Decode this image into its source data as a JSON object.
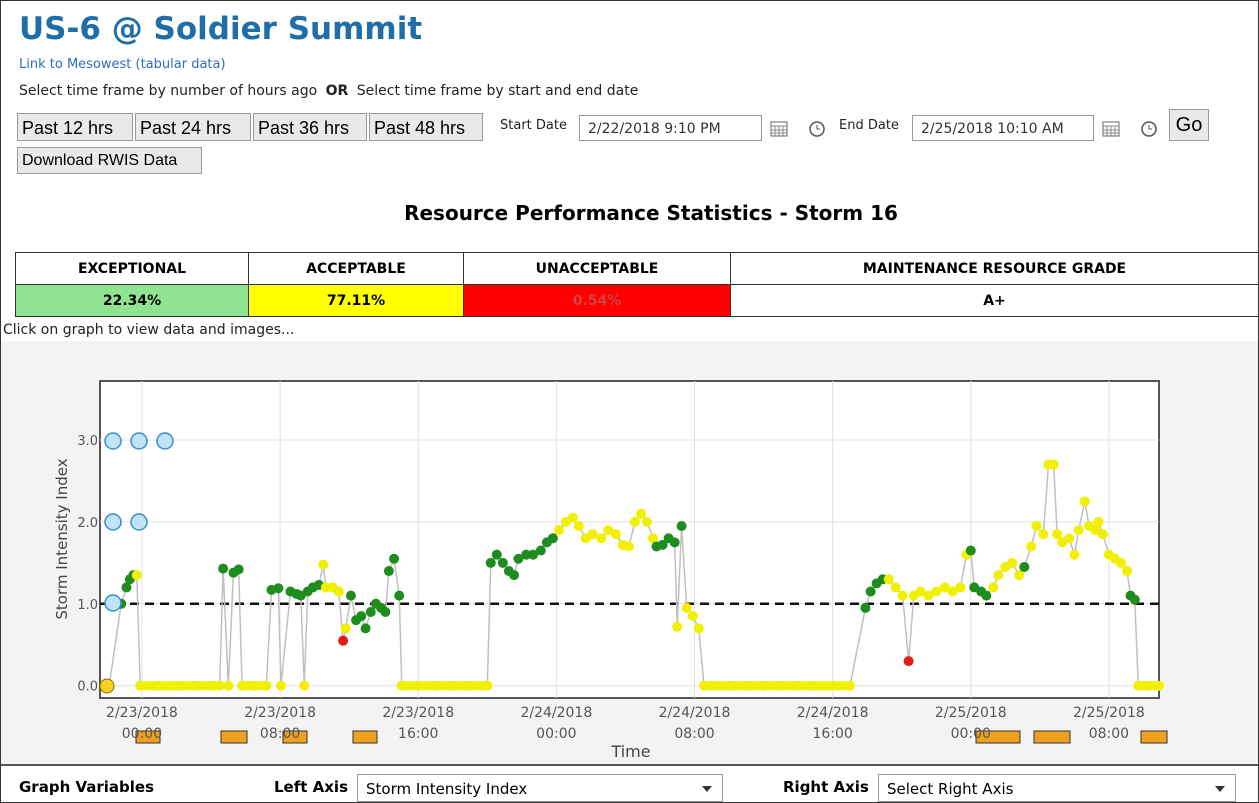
{
  "header": {
    "title": "US-6 @ Soldier Summit",
    "link": "Link to Mesowest (tabular data)"
  },
  "controls": {
    "instruction_hours": "Select time frame by number of hours ago",
    "or": "OR",
    "instruction_dates": "Select time frame by start and end date",
    "buttons": [
      "Past 12 hrs",
      "Past 24 hrs",
      "Past 36 hrs",
      "Past 48 hrs"
    ],
    "start_label": "Start Date",
    "start_value": "2/22/2018 9:10 PM",
    "end_label": "End Date",
    "end_value": "2/25/2018 10:10 AM",
    "go": "Go",
    "download": "Download RWIS Data"
  },
  "stats": {
    "title": "Resource Performance Statistics - Storm 16",
    "headers": [
      "EXCEPTIONAL",
      "ACCEPTABLE",
      "UNACCEPTABLE",
      "MAINTENANCE RESOURCE GRADE"
    ],
    "values": [
      "22.34%",
      "77.11%",
      "0.54%",
      "A+"
    ],
    "colors": [
      "#90e390",
      "#ffff00",
      "#ff0000",
      "#ffffff"
    ]
  },
  "note": "Click on graph to view data and images...",
  "chart_data": {
    "type": "scatter",
    "y_label": "Storm Intensity Index",
    "x_label": "Time",
    "xlim": [
      -2.43,
      58.9
    ],
    "ylim": [
      -0.15,
      3.72
    ],
    "xticks": [
      {
        "value": 0,
        "label": "2/23/2018\n00:00"
      },
      {
        "value": 8,
        "label": "2/23/2018\n08:00"
      },
      {
        "value": 16,
        "label": "2/23/2018\n16:00"
      },
      {
        "value": 24,
        "label": "2/24/2018\n00:00"
      },
      {
        "value": 32,
        "label": "2/24/2018\n08:00"
      },
      {
        "value": 40,
        "label": "2/24/2018\n16:00"
      },
      {
        "value": 48,
        "label": "2/25/2018\n00:00"
      },
      {
        "value": 56,
        "label": "2/25/2018\n08:00"
      }
    ],
    "yticks": [
      {
        "value": 0,
        "label": "0.0"
      },
      {
        "value": 1,
        "label": "1.0"
      },
      {
        "value": 2,
        "label": "2.0"
      },
      {
        "value": 3,
        "label": "3.0"
      }
    ],
    "grid": true,
    "threshold": 1,
    "line_color": "#c0c0c0",
    "x": [
      -1.9,
      -1.2,
      -0.9,
      -0.7,
      -0.5,
      -0.3,
      -0.1,
      1,
      2,
      3,
      4,
      4.5,
      4.7,
      5.0,
      5.3,
      5.6,
      5.8,
      6.5,
      7.2,
      7.5,
      7.9,
      8.05,
      8.6,
      8.95,
      9.2,
      9.4,
      9.6,
      9.9,
      10.25,
      10.5,
      10.65,
      11.05,
      11.4,
      11.65,
      11.8,
      12.1,
      12.4,
      12.7,
      12.95,
      13.25,
      13.55,
      13.85,
      14.1,
      14.3,
      14.6,
      14.9,
      15.05,
      16,
      17,
      18,
      19,
      20,
      20.2,
      20.55,
      20.9,
      21.25,
      21.55,
      21.8,
      22.25,
      22.65,
      23.1,
      23.45,
      23.8,
      24.15,
      24.55,
      24.95,
      25.3,
      25.7,
      26.1,
      26.6,
      27.0,
      27.45,
      27.85,
      28.2,
      28.55,
      28.9,
      29.25,
      29.6,
      29.8,
      30.15,
      30.5,
      30.85,
      31.0,
      31.25,
      31.55,
      31.9,
      32.25,
      32.55,
      33,
      34,
      35,
      36,
      37,
      38,
      39,
      40,
      41,
      41.9,
      42.2,
      42.55,
      42.9,
      43.25,
      43.65,
      44.05,
      44.4,
      44.7,
      45.1,
      45.55,
      46.0,
      46.5,
      46.95,
      47.4,
      47.75,
      48.0,
      48.2,
      48.6,
      48.9,
      49.3,
      49.6,
      50.0,
      50.4,
      50.8,
      51.1,
      51.5,
      51.8,
      52.2,
      52.5,
      52.8,
      53.0,
      53.3,
      53.7,
      54.0,
      54.25,
      54.6,
      54.85,
      55.2,
      55.4,
      55.65,
      56.0,
      56.35,
      56.7,
      57.05,
      57.25,
      57.5,
      57.7,
      58.3,
      58.9
    ],
    "values": [
      0,
      1.0,
      1.2,
      1.3,
      1.35,
      1.35,
      0,
      0,
      0,
      0,
      0,
      0,
      1.43,
      0,
      1.38,
      1.42,
      0,
      0,
      0,
      1.17,
      1.19,
      0,
      1.15,
      1.12,
      1.1,
      0,
      1.15,
      1.2,
      1.23,
      1.48,
      1.2,
      1.2,
      1.15,
      0.55,
      0.7,
      1.1,
      0.8,
      0.85,
      0.7,
      0.9,
      1.0,
      0.95,
      0.9,
      1.4,
      1.55,
      1.1,
      0,
      0,
      0,
      0,
      0,
      0,
      1.5,
      1.6,
      1.5,
      1.4,
      1.35,
      1.55,
      1.6,
      1.6,
      1.65,
      1.75,
      1.8,
      1.9,
      2.0,
      2.05,
      1.95,
      1.8,
      1.85,
      1.8,
      1.9,
      1.85,
      1.72,
      1.7,
      2.0,
      2.1,
      2.0,
      1.8,
      1.7,
      1.72,
      1.8,
      1.75,
      0.72,
      1.95,
      0.95,
      0.85,
      0.7,
      0,
      0,
      0,
      0,
      0,
      0,
      0,
      0,
      0,
      0,
      0.95,
      1.15,
      1.25,
      1.3,
      1.3,
      1.2,
      1.1,
      0.3,
      1.1,
      1.15,
      1.1,
      1.15,
      1.2,
      1.15,
      1.2,
      1.6,
      1.65,
      1.2,
      1.15,
      1.1,
      1.2,
      1.35,
      1.45,
      1.5,
      1.35,
      1.45,
      1.7,
      1.95,
      1.85,
      2.7,
      2.7,
      1.85,
      1.75,
      1.8,
      1.6,
      1.9,
      2.25,
      1.95,
      1.9,
      2.0,
      1.85,
      1.6,
      1.55,
      1.5,
      1.4,
      1.1,
      1.05,
      0,
      0,
      0
    ],
    "colors": [
      "#f0f000",
      "#1e8c1e",
      "#1e8c1e",
      "#1e8c1e",
      "#1e8c1e",
      "#f0f000",
      "#f0f000",
      "#f0f000",
      "#f0f000",
      "#f0f000",
      "#f0f000",
      "#f0f000",
      "#1e8c1e",
      "#f0f000",
      "#1e8c1e",
      "#1e8c1e",
      "#f0f000",
      "#f0f000",
      "#f0f000",
      "#1e8c1e",
      "#1e8c1e",
      "#f0f000",
      "#1e8c1e",
      "#1e8c1e",
      "#1e8c1e",
      "#f0f000",
      "#1e8c1e",
      "#1e8c1e",
      "#1e8c1e",
      "#f0f000",
      "#f0f000",
      "#f0f000",
      "#f0f000",
      "#e31b1b",
      "#f0f000",
      "#1e8c1e",
      "#1e8c1e",
      "#1e8c1e",
      "#1e8c1e",
      "#1e8c1e",
      "#1e8c1e",
      "#1e8c1e",
      "#1e8c1e",
      "#1e8c1e",
      "#1e8c1e",
      "#1e8c1e",
      "#f0f000",
      "#f0f000",
      "#f0f000",
      "#f0f000",
      "#f0f000",
      "#f0f000",
      "#1e8c1e",
      "#1e8c1e",
      "#1e8c1e",
      "#1e8c1e",
      "#1e8c1e",
      "#1e8c1e",
      "#1e8c1e",
      "#1e8c1e",
      "#1e8c1e",
      "#1e8c1e",
      "#1e8c1e",
      "#f0f000",
      "#f0f000",
      "#f0f000",
      "#f0f000",
      "#f0f000",
      "#f0f000",
      "#f0f000",
      "#f0f000",
      "#f0f000",
      "#f0f000",
      "#f0f000",
      "#f0f000",
      "#f0f000",
      "#f0f000",
      "#f0f000",
      "#1e8c1e",
      "#1e8c1e",
      "#1e8c1e",
      "#1e8c1e",
      "#f0f000",
      "#1e8c1e",
      "#f0f000",
      "#f0f000",
      "#f0f000",
      "#f0f000",
      "#f0f000",
      "#f0f000",
      "#f0f000",
      "#f0f000",
      "#f0f000",
      "#f0f000",
      "#f0f000",
      "#f0f000",
      "#f0f000",
      "#1e8c1e",
      "#1e8c1e",
      "#1e8c1e",
      "#1e8c1e",
      "#f0f000",
      "#f0f000",
      "#f0f000",
      "#e31b1b",
      "#f0f000",
      "#f0f000",
      "#f0f000",
      "#f0f000",
      "#f0f000",
      "#f0f000",
      "#f0f000",
      "#f0f000",
      "#1e8c1e",
      "#1e8c1e",
      "#1e8c1e",
      "#1e8c1e",
      "#f0f000",
      "#f0f000",
      "#f0f000",
      "#f0f000",
      "#f0f000",
      "#1e8c1e",
      "#f0f000",
      "#f0f000",
      "#f0f000",
      "#f0f000",
      "#f0f000",
      "#f0f000",
      "#f0f000",
      "#f0f000",
      "#f0f000",
      "#f0f000",
      "#f0f000",
      "#f0f000",
      "#f0f000",
      "#f0f000",
      "#f0f000",
      "#f0f000",
      "#f0f000",
      "#f0f000",
      "#f0f000",
      "#1e8c1e",
      "#1e8c1e",
      "#f0f000",
      "#f0f000",
      "#f0f000"
    ]
  },
  "footer": {
    "graph_variables": "Graph Variables",
    "left_label": "Left Axis",
    "left_value": "Storm Intensity Index",
    "right_label": "Right Axis",
    "right_value": "Select Right Axis"
  }
}
